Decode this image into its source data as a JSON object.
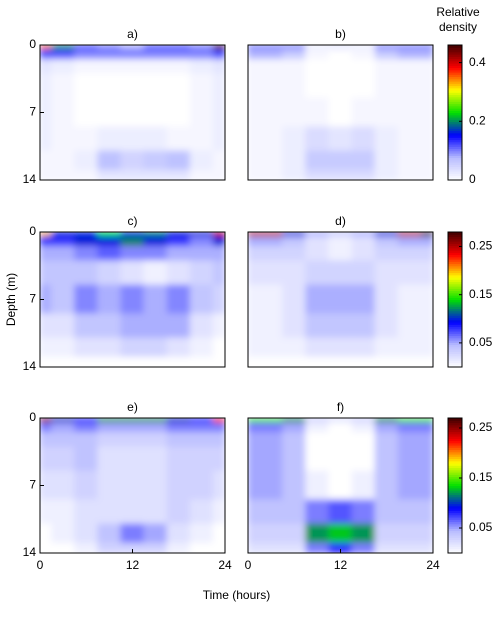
{
  "chart_data": [
    {
      "type": "heatmap",
      "title": "a)",
      "x": [
        0,
        3,
        6,
        9,
        12,
        15,
        18,
        21,
        24
      ],
      "y": [
        0,
        1,
        2,
        4,
        7,
        10,
        12,
        14
      ],
      "xlim": [
        0,
        24
      ],
      "ylim": [
        14,
        0
      ],
      "yticks": [
        0,
        7,
        14
      ],
      "zlim": [
        0,
        0.46
      ],
      "colormap": [
        "#ffffff",
        "#b8bcff",
        "#0000ff",
        "#00e000",
        "#ffff00",
        "#ff0000",
        "#400000"
      ],
      "z": [
        [
          0.35,
          0.2,
          0.12,
          0.1,
          0.08,
          0.12,
          0.12,
          0.1,
          0.45
        ],
        [
          0.12,
          0.12,
          0.1,
          0.1,
          0.1,
          0.1,
          0.1,
          0.1,
          0.12
        ],
        [
          0.03,
          0.02,
          0.01,
          0.01,
          0.01,
          0.01,
          0.01,
          0.02,
          0.03
        ],
        [
          0.02,
          0.01,
          0,
          0,
          0,
          0,
          0,
          0.01,
          0.02
        ],
        [
          0.02,
          0.01,
          0,
          0,
          0,
          0,
          0,
          0.01,
          0.02
        ],
        [
          0.02,
          0.01,
          0.01,
          0.02,
          0.02,
          0.02,
          0.01,
          0.01,
          0.02
        ],
        [
          0.01,
          0.01,
          0.02,
          0.07,
          0.05,
          0.06,
          0.07,
          0.02,
          0.01
        ],
        [
          0.01,
          0.01,
          0.01,
          0.03,
          0.03,
          0.03,
          0.03,
          0.01,
          0.01
        ]
      ]
    },
    {
      "type": "heatmap",
      "title": "b)",
      "x": [
        0,
        3,
        6,
        9,
        12,
        15,
        18,
        21,
        24
      ],
      "y": [
        0,
        1,
        2,
        4,
        7,
        10,
        12,
        14
      ],
      "xlim": [
        0,
        24
      ],
      "ylim": [
        14,
        0
      ],
      "zlim": [
        0,
        0.46
      ],
      "cticks": [
        0,
        0.2,
        0.4
      ],
      "clabel": "Relative density",
      "colormap": [
        "#ffffff",
        "#b8bcff",
        "#0000ff",
        "#00e000",
        "#ffff00",
        "#ff0000",
        "#400000"
      ],
      "z": [
        [
          0.1,
          0.1,
          0.1,
          0.02,
          0.03,
          0.02,
          0.1,
          0.1,
          0.1
        ],
        [
          0.08,
          0.08,
          0.06,
          0.01,
          0,
          0.01,
          0.06,
          0.08,
          0.08
        ],
        [
          0.01,
          0.01,
          0.01,
          0,
          0,
          0,
          0.01,
          0.01,
          0.01
        ],
        [
          0.01,
          0.01,
          0.01,
          0,
          0,
          0,
          0.01,
          0.01,
          0.01
        ],
        [
          0.01,
          0.01,
          0.01,
          0.01,
          0,
          0.01,
          0.01,
          0.01,
          0.01
        ],
        [
          0.01,
          0.01,
          0.02,
          0.04,
          0.03,
          0.04,
          0.02,
          0.01,
          0.01
        ],
        [
          0.01,
          0.01,
          0.02,
          0.06,
          0.06,
          0.06,
          0.02,
          0.01,
          0.01
        ],
        [
          0.01,
          0.01,
          0.02,
          0.04,
          0.04,
          0.04,
          0.02,
          0.01,
          0.01
        ]
      ]
    },
    {
      "type": "heatmap",
      "title": "c)",
      "x": [
        0,
        3,
        6,
        9,
        12,
        15,
        18,
        21,
        24
      ],
      "y": [
        0,
        1,
        2,
        4,
        7,
        10,
        12,
        14
      ],
      "xlim": [
        0,
        24
      ],
      "ylim": [
        14,
        0
      ],
      "yticks": [
        0,
        7,
        14
      ],
      "ylabel": "Depth (m)",
      "zlim": [
        0,
        0.28
      ],
      "colormap": [
        "#ffffff",
        "#b8bcff",
        "#0000ff",
        "#00e000",
        "#ffff00",
        "#ff0000",
        "#400000"
      ],
      "z": [
        [
          0.2,
          0.1,
          0.1,
          0.14,
          0.1,
          0.12,
          0.1,
          0.1,
          0.25
        ],
        [
          0.08,
          0.08,
          0.1,
          0.1,
          0.12,
          0.1,
          0.08,
          0.06,
          0.1
        ],
        [
          0.05,
          0.05,
          0.06,
          0.07,
          0.06,
          0.06,
          0.05,
          0.05,
          0.05
        ],
        [
          0.04,
          0.04,
          0.04,
          0.03,
          0.02,
          0.01,
          0.02,
          0.03,
          0.04
        ],
        [
          0.05,
          0.04,
          0.06,
          0.05,
          0.06,
          0.05,
          0.06,
          0.04,
          0.03
        ],
        [
          0.02,
          0.02,
          0.04,
          0.04,
          0.05,
          0.05,
          0.05,
          0.02,
          0.01
        ],
        [
          0.01,
          0.01,
          0.02,
          0.02,
          0.03,
          0.03,
          0.02,
          0.01,
          0
        ],
        [
          0,
          0,
          0,
          0,
          0,
          0,
          0,
          0,
          0
        ]
      ]
    },
    {
      "type": "heatmap",
      "title": "d)",
      "x": [
        0,
        3,
        6,
        9,
        12,
        15,
        18,
        21,
        24
      ],
      "y": [
        0,
        1,
        2,
        4,
        7,
        10,
        12,
        14
      ],
      "xlim": [
        0,
        24
      ],
      "ylim": [
        14,
        0
      ],
      "zlim": [
        0,
        0.28
      ],
      "cticks": [
        0.05,
        0.15,
        0.25
      ],
      "colormap": [
        "#ffffff",
        "#b8bcff",
        "#0000ff",
        "#00e000",
        "#ffff00",
        "#ff0000",
        "#400000"
      ],
      "z": [
        [
          0.25,
          0.25,
          0.1,
          0.05,
          0.04,
          0.05,
          0.1,
          0.25,
          0.28
        ],
        [
          0.05,
          0.05,
          0.04,
          0.02,
          0.01,
          0.02,
          0.04,
          0.05,
          0.05
        ],
        [
          0.03,
          0.03,
          0.03,
          0.02,
          0.01,
          0.02,
          0.03,
          0.03,
          0.03
        ],
        [
          0.02,
          0.02,
          0.02,
          0.03,
          0.03,
          0.03,
          0.02,
          0.02,
          0.02
        ],
        [
          0.01,
          0.01,
          0.02,
          0.05,
          0.05,
          0.05,
          0.02,
          0.01,
          0.01
        ],
        [
          0.01,
          0.01,
          0.02,
          0.04,
          0.04,
          0.04,
          0.02,
          0.01,
          0.01
        ],
        [
          0.01,
          0.01,
          0.01,
          0.02,
          0.02,
          0.02,
          0.01,
          0.01,
          0.01
        ],
        [
          0,
          0,
          0,
          0,
          0,
          0,
          0,
          0,
          0
        ]
      ]
    },
    {
      "type": "heatmap",
      "title": "e)",
      "x": [
        0,
        3,
        6,
        9,
        12,
        15,
        18,
        21,
        24
      ],
      "y": [
        0,
        1,
        2,
        4,
        7,
        10,
        12,
        14
      ],
      "xlim": [
        0,
        24
      ],
      "ylim": [
        14,
        0
      ],
      "xticks": [
        0,
        12,
        24
      ],
      "yticks": [
        0,
        7,
        14
      ],
      "xlabel": "Time (hours)",
      "zlim": [
        0,
        0.27
      ],
      "colormap": [
        "#ffffff",
        "#b8bcff",
        "#0000ff",
        "#00e000",
        "#ffff00",
        "#ff0000",
        "#400000"
      ],
      "z": [
        [
          0.25,
          0.1,
          0.08,
          0.12,
          0.12,
          0.12,
          0.1,
          0.08,
          0.22
        ],
        [
          0.06,
          0.05,
          0.06,
          0.05,
          0.05,
          0.05,
          0.06,
          0.06,
          0.06
        ],
        [
          0.04,
          0.04,
          0.04,
          0.03,
          0.03,
          0.03,
          0.04,
          0.04,
          0.04
        ],
        [
          0.03,
          0.03,
          0.04,
          0.02,
          0.02,
          0.02,
          0.03,
          0.03,
          0.03
        ],
        [
          0.02,
          0.02,
          0.03,
          0.02,
          0.02,
          0.02,
          0.03,
          0.03,
          0.02
        ],
        [
          0.01,
          0.01,
          0.02,
          0.02,
          0.02,
          0.02,
          0.03,
          0.02,
          0.01
        ],
        [
          0,
          0.01,
          0.02,
          0.04,
          0.06,
          0.05,
          0.02,
          0.01,
          0
        ],
        [
          0,
          0,
          0.01,
          0.03,
          0.03,
          0.03,
          0.01,
          0,
          0
        ]
      ]
    },
    {
      "type": "heatmap",
      "title": "f)",
      "x": [
        0,
        3,
        6,
        9,
        12,
        15,
        18,
        21,
        24
      ],
      "y": [
        0,
        1,
        2,
        4,
        7,
        10,
        12,
        14
      ],
      "xlim": [
        0,
        24
      ],
      "ylim": [
        14,
        0
      ],
      "xticks": [
        0,
        12,
        24
      ],
      "zlim": [
        0,
        0.27
      ],
      "cticks": [
        0.05,
        0.15,
        0.25
      ],
      "colormap": [
        "#ffffff",
        "#b8bcff",
        "#0000ff",
        "#00e000",
        "#ffff00",
        "#ff0000",
        "#400000"
      ],
      "z": [
        [
          0.15,
          0.15,
          0.12,
          0.03,
          0.02,
          0.03,
          0.12,
          0.15,
          0.15
        ],
        [
          0.06,
          0.06,
          0.05,
          0.01,
          0,
          0.01,
          0.05,
          0.06,
          0.06
        ],
        [
          0.05,
          0.05,
          0.04,
          0,
          0,
          0,
          0.04,
          0.05,
          0.05
        ],
        [
          0.05,
          0.05,
          0.04,
          0,
          0,
          0,
          0.04,
          0.05,
          0.05
        ],
        [
          0.05,
          0.05,
          0.04,
          0.01,
          0,
          0.01,
          0.04,
          0.05,
          0.05
        ],
        [
          0.04,
          0.04,
          0.04,
          0.06,
          0.07,
          0.06,
          0.04,
          0.04,
          0.04
        ],
        [
          0.03,
          0.03,
          0.03,
          0.12,
          0.13,
          0.12,
          0.03,
          0.03,
          0.03
        ],
        [
          0.02,
          0.02,
          0.02,
          0.06,
          0.08,
          0.06,
          0.02,
          0.02,
          0.02
        ]
      ]
    }
  ]
}
